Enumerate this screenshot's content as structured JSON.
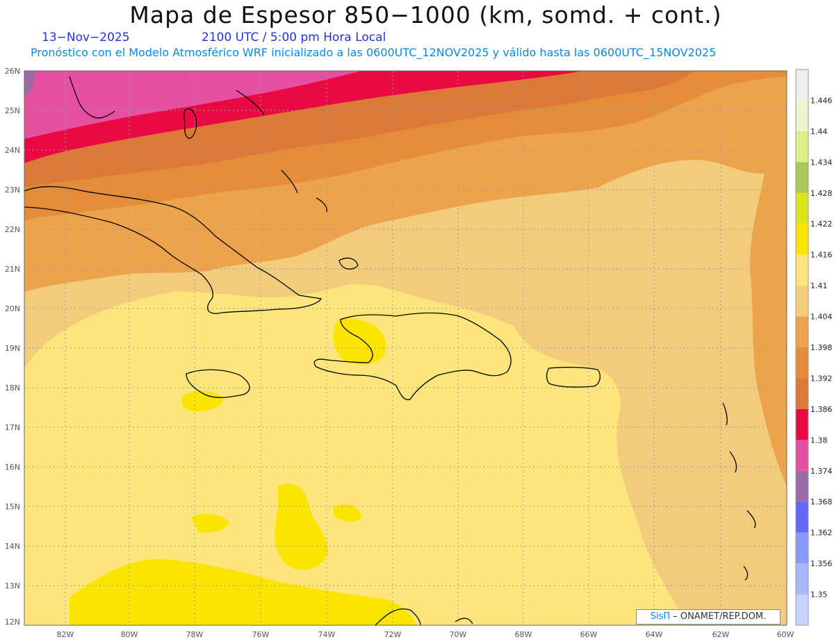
{
  "header": {
    "title": "Mapa de Espesor 850−1000 (km, somd. + cont.)",
    "date": "13−Nov−2025",
    "time": "2100 UTC / 5:00 pm Hora Local",
    "subtitle": "Pronóstico con el Modelo Atmosférico WRF inicializado a las 0600UTC_12NOV2025 y válido hasta las  0600UTC_15NOV2025"
  },
  "map": {
    "lat_labels": [
      "26N",
      "25N",
      "24N",
      "23N",
      "22N",
      "21N",
      "20N",
      "19N",
      "18N",
      "17N",
      "16N",
      "15N",
      "14N",
      "13N",
      "12N"
    ],
    "lon_labels": [
      "82W",
      "80W",
      "78W",
      "76W",
      "74W",
      "72W",
      "70W",
      "68W",
      "66W",
      "64W",
      "62W",
      "60W"
    ]
  },
  "colorbar": {
    "levels": [
      "1.35",
      "1.356",
      "1.362",
      "1.368",
      "1.374",
      "1.38",
      "1.386",
      "1.392",
      "1.398",
      "1.404",
      "1.41",
      "1.416",
      "1.422",
      "1.428",
      "1.434",
      "1.44",
      "1.446"
    ],
    "colors": [
      "#c8d2fa",
      "#a6b8fb",
      "#8a9afa",
      "#6466f6",
      "#9b6aa8",
      "#e550a0",
      "#ea0a42",
      "#dc7838",
      "#e58c38",
      "#eca34c",
      "#f2cb7c",
      "#fce67c",
      "#fae400",
      "#dae41a",
      "#a8c858",
      "#dcee8a",
      "#eef4cc",
      "#eeeeee"
    ]
  },
  "credit": {
    "brand": "SisΠ",
    "org": " – ONAMET/REP.DOM."
  }
}
